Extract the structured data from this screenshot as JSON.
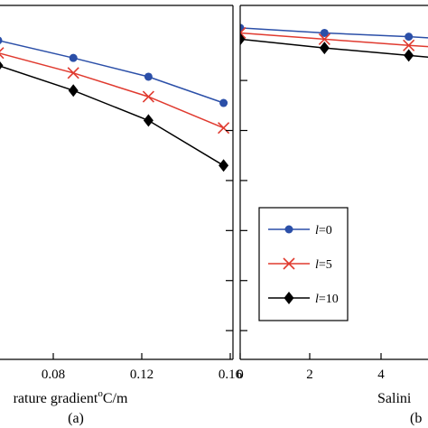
{
  "chart_data": [
    {
      "type": "line",
      "panel_label": "(a)",
      "xlabel": "rature gradient",
      "xlabel_sup": "o",
      "xlabel_unit": "C/m",
      "x_ticks": [
        "0.08",
        "0.12",
        "0.16"
      ],
      "x": [
        0.04,
        0.08,
        0.12,
        0.16
      ],
      "xlim": [
        0.04,
        0.165
      ],
      "series": [
        {
          "name": "l=0",
          "color": "#2b4fa8",
          "marker": "dot",
          "values": [
            0.92,
            0.78,
            0.63,
            0.42
          ]
        },
        {
          "name": "l=5",
          "color": "#e03a2f",
          "marker": "x",
          "values": [
            0.82,
            0.66,
            0.47,
            0.22
          ]
        },
        {
          "name": "l=10",
          "color": "#000000",
          "marker": "diamond",
          "values": [
            0.72,
            0.52,
            0.28,
            -0.08
          ]
        }
      ],
      "ylim": [
        -1.63,
        1.2
      ],
      "y_tick_values": [
        -1.4,
        -1.0,
        -0.6,
        -0.2,
        0.2
      ],
      "legend": {
        "placement": "bottom-right",
        "entries": [
          {
            "prefix": "l",
            "suffix": "=0",
            "color": "#2b4fa8",
            "marker": "dot"
          },
          {
            "prefix": "l",
            "suffix": "=5",
            "color": "#e03a2f",
            "marker": "x"
          },
          {
            "prefix": "l",
            "suffix": "=10",
            "color": "#000000",
            "marker": "diamond"
          }
        ]
      }
    },
    {
      "type": "line",
      "panel_label": "(b",
      "xlabel": "Salini",
      "x_ticks": [
        "0",
        "2",
        "4"
      ],
      "x": [
        0,
        2,
        4,
        6
      ],
      "xlim": [
        0,
        4.5
      ],
      "series": [
        {
          "name": "l=0",
          "color": "#2b4fa8",
          "marker": "dot",
          "values": [
            1.02,
            0.98,
            0.95,
            0.91
          ]
        },
        {
          "name": "l=5",
          "color": "#e03a2f",
          "marker": "x",
          "values": [
            0.98,
            0.93,
            0.88,
            0.84
          ]
        },
        {
          "name": "l=10",
          "color": "#000000",
          "marker": "diamond",
          "values": [
            0.93,
            0.86,
            0.8,
            0.74
          ]
        }
      ],
      "ylim": [
        -1.63,
        1.2
      ],
      "y_tick_values": [
        0.6,
        0.2,
        -0.2,
        -0.6,
        -1.0,
        -1.4
      ]
    }
  ]
}
